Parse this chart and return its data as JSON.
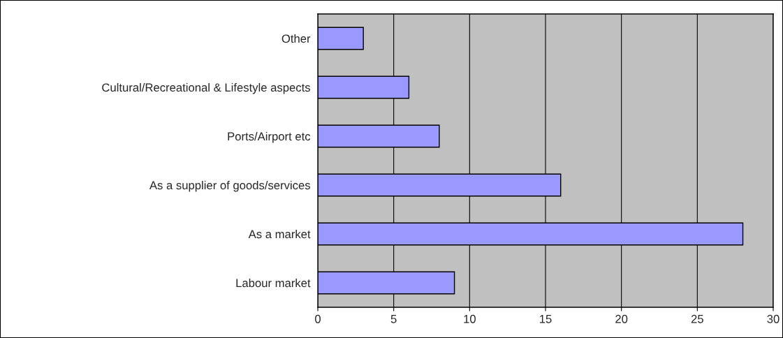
{
  "chart_data": {
    "type": "bar",
    "orientation": "horizontal",
    "categories": [
      "Other",
      "Cultural/Recreational & Lifestyle aspects",
      "Ports/Airport etc",
      "As a supplier of goods/services",
      "As a market",
      "Labour market"
    ],
    "values": [
      3,
      6,
      8,
      16,
      28,
      9
    ],
    "color": "#9999ff",
    "xlim": [
      0,
      30
    ],
    "xticks": [
      0,
      5,
      10,
      15,
      20,
      25,
      30
    ],
    "grid": "x",
    "legend": false
  }
}
